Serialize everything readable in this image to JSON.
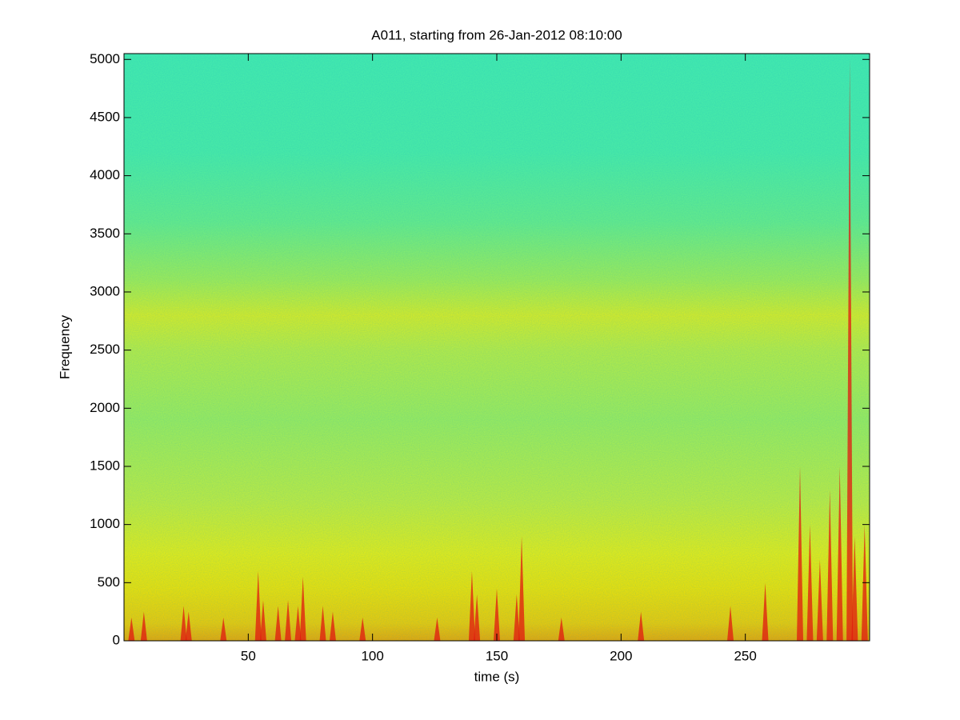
{
  "chart_data": {
    "type": "spectrogram",
    "title": "A011, starting from 26-Jan-2012 08:10:00",
    "x_label": "time (s)",
    "y_label": "Frequency",
    "xlim": [
      0,
      300
    ],
    "ylim": [
      0,
      5050
    ],
    "xticks": [
      50,
      100,
      150,
      200,
      250
    ],
    "yticks": [
      0,
      500,
      1000,
      1500,
      2000,
      2500,
      3000,
      3500,
      4000,
      4500,
      5000
    ],
    "color_stops": [
      {
        "freq": 0,
        "color": "#f0a800"
      },
      {
        "freq": 150,
        "color": "#f5cc00"
      },
      {
        "freq": 450,
        "color": "#f6e400"
      },
      {
        "freq": 750,
        "color": "#eef010"
      },
      {
        "freq": 1200,
        "color": "#c8f03a"
      },
      {
        "freq": 1900,
        "color": "#a2f058"
      },
      {
        "freq": 2500,
        "color": "#bff040"
      },
      {
        "freq": 2800,
        "color": "#e0f020"
      },
      {
        "freq": 3100,
        "color": "#a8f050"
      },
      {
        "freq": 3600,
        "color": "#6cf086"
      },
      {
        "freq": 4200,
        "color": "#4ef0a4"
      },
      {
        "freq": 5050,
        "color": "#48f0ac"
      }
    ],
    "event_color": "#e01810",
    "events": [
      {
        "time": 3,
        "top": 200
      },
      {
        "time": 8,
        "top": 250
      },
      {
        "time": 24,
        "top": 300
      },
      {
        "time": 26,
        "top": 250
      },
      {
        "time": 40,
        "top": 200
      },
      {
        "time": 54,
        "top": 600
      },
      {
        "time": 56,
        "top": 350
      },
      {
        "time": 62,
        "top": 300
      },
      {
        "time": 66,
        "top": 350
      },
      {
        "time": 70,
        "top": 300
      },
      {
        "time": 72,
        "top": 550
      },
      {
        "time": 80,
        "top": 300
      },
      {
        "time": 84,
        "top": 250
      },
      {
        "time": 96,
        "top": 200
      },
      {
        "time": 126,
        "top": 200
      },
      {
        "time": 140,
        "top": 600
      },
      {
        "time": 142,
        "top": 400
      },
      {
        "time": 150,
        "top": 450
      },
      {
        "time": 158,
        "top": 400
      },
      {
        "time": 160,
        "top": 900
      },
      {
        "time": 176,
        "top": 200
      },
      {
        "time": 208,
        "top": 250
      },
      {
        "time": 244,
        "top": 300
      },
      {
        "time": 258,
        "top": 500
      },
      {
        "time": 272,
        "top": 1500
      },
      {
        "time": 276,
        "top": 1000
      },
      {
        "time": 280,
        "top": 700
      },
      {
        "time": 284,
        "top": 1300
      },
      {
        "time": 288,
        "top": 1500
      },
      {
        "time": 292,
        "top": 5000
      },
      {
        "time": 294,
        "top": 900
      },
      {
        "time": 298,
        "top": 1000
      }
    ]
  }
}
